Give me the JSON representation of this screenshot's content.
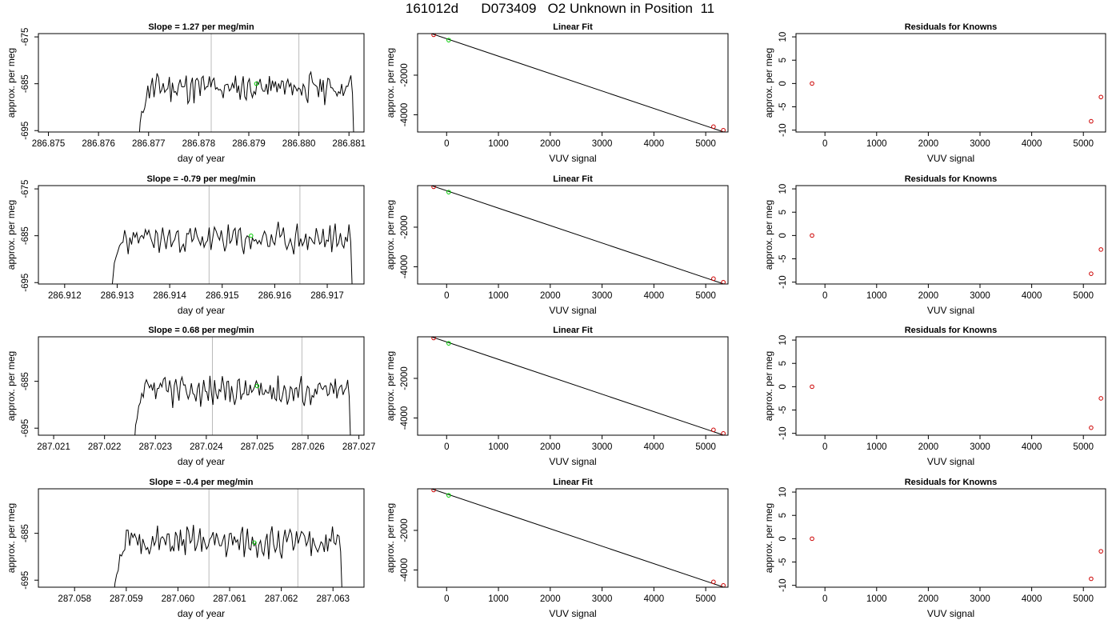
{
  "title": "161012d      D073409   O2 Unknown in Position  11",
  "chart_data": [
    {
      "row": 1,
      "time_panel": {
        "type": "line",
        "title": "Slope =  1.27  per meg/min",
        "xlabel": "day of year",
        "ylabel": "approx. per meg",
        "xlim": [
          286.8748,
          286.8813
        ],
        "ylim": [
          -695.3,
          -674.3
        ],
        "xticks": [
          "286.875",
          "286.876",
          "286.877",
          "286.878",
          "286.879",
          "286.880",
          "286.881"
        ],
        "yticks": [
          "-675",
          "-685",
          "-695"
        ],
        "series_x": [
          286.8768,
          286.8811
        ],
        "seed": 11,
        "vlines": [
          286.87825,
          286.88
        ],
        "marker": {
          "x": 286.87915,
          "y": -685
        }
      },
      "fit_panel": {
        "type": "scatter",
        "title": "Linear Fit",
        "xlabel": "VUV signal",
        "ylabel": "approx. per meg",
        "xlim": [
          -560,
          5430
        ],
        "ylim": [
          -4870,
          100
        ],
        "xticks": [
          "0",
          "1000",
          "2000",
          "3000",
          "4000",
          "5000"
        ],
        "yticks": [
          "-2000",
          "-4000"
        ],
        "line": [
          [
            -520,
            300
          ],
          [
            5350,
            -4870
          ]
        ],
        "knowns": [
          [
            -250,
            40
          ],
          [
            5150,
            -4600
          ],
          [
            5340,
            -4780
          ]
        ],
        "unknown": [
          [
            40,
            -230
          ]
        ]
      },
      "resid_panel": {
        "type": "scatter",
        "title": "Residuals for Knowns",
        "xlabel": "VUV signal",
        "ylabel": "approx. per meg",
        "xlim": [
          -560,
          5430
        ],
        "ylim": [
          -10.4,
          10.7
        ],
        "xticks": [
          "0",
          "1000",
          "2000",
          "3000",
          "4000",
          "5000"
        ],
        "yticks": [
          "10",
          "5",
          "0",
          "-5",
          "-10"
        ],
        "points": [
          [
            -250,
            0
          ],
          [
            5150,
            -8.1
          ],
          [
            5340,
            -2.9
          ]
        ]
      }
    },
    {
      "row": 2,
      "time_panel": {
        "type": "line",
        "title": "Slope =  -0.79  per meg/min",
        "xlabel": "day of year",
        "ylabel": "approx. per meg",
        "xlim": [
          286.9115,
          286.9177
        ],
        "ylim": [
          -695.3,
          -674.3
        ],
        "xticks": [
          "286.912",
          "286.913",
          "286.914",
          "286.915",
          "286.916",
          "286.917"
        ],
        "yticks": [
          "-675",
          "-685",
          "-695"
        ],
        "series_x": [
          286.91288,
          286.91748
        ],
        "seed": 23,
        "vlines": [
          286.91475,
          286.91648
        ],
        "marker": {
          "x": 286.91555,
          "y": -685
        }
      },
      "fit_panel": {
        "type": "scatter",
        "title": "Linear Fit",
        "xlabel": "VUV signal",
        "ylabel": "approx. per meg",
        "xlim": [
          -560,
          5430
        ],
        "ylim": [
          -4870,
          100
        ],
        "xticks": [
          "0",
          "1000",
          "2000",
          "3000",
          "4000",
          "5000"
        ],
        "yticks": [
          "-2000",
          "-4000"
        ],
        "line": [
          [
            -520,
            300
          ],
          [
            5350,
            -4870
          ]
        ],
        "knowns": [
          [
            -250,
            40
          ],
          [
            5150,
            -4600
          ],
          [
            5340,
            -4780
          ]
        ],
        "unknown": [
          [
            40,
            -230
          ]
        ]
      },
      "resid_panel": {
        "type": "scatter",
        "title": "Residuals for Knowns",
        "xlabel": "VUV signal",
        "ylabel": "approx. per meg",
        "xlim": [
          -560,
          5430
        ],
        "ylim": [
          -10.4,
          10.7
        ],
        "xticks": [
          "0",
          "1000",
          "2000",
          "3000",
          "4000",
          "5000"
        ],
        "yticks": [
          "10",
          "5",
          "0",
          "-5",
          "-10"
        ],
        "points": [
          [
            -250,
            0
          ],
          [
            5150,
            -8.2
          ],
          [
            5340,
            -3.0
          ]
        ]
      }
    },
    {
      "row": 3,
      "time_panel": {
        "type": "line",
        "title": "Slope =  0.68  per meg/min",
        "xlabel": "day of year",
        "ylabel": "approx. per meg",
        "xlim": [
          287.0207,
          287.0271
        ],
        "ylim": [
          -696.5,
          -675.5
        ],
        "xticks": [
          "287.021",
          "287.022",
          "287.023",
          "287.024",
          "287.025",
          "287.026",
          "287.027"
        ],
        "yticks": [
          "-685",
          "-695"
        ],
        "series_x": [
          287.02258,
          287.02684
        ],
        "seed": 37,
        "vlines": [
          287.02412,
          287.02588
        ],
        "marker": {
          "x": 287.025,
          "y": -686
        }
      },
      "fit_panel": {
        "type": "scatter",
        "title": "Linear Fit",
        "xlabel": "VUV signal",
        "ylabel": "approx. per meg",
        "xlim": [
          -560,
          5430
        ],
        "ylim": [
          -4870,
          100
        ],
        "xticks": [
          "0",
          "1000",
          "2000",
          "3000",
          "4000",
          "5000"
        ],
        "yticks": [
          "-2000",
          "-4000"
        ],
        "line": [
          [
            -520,
            300
          ],
          [
            5350,
            -4870
          ]
        ],
        "knowns": [
          [
            -250,
            40
          ],
          [
            5150,
            -4600
          ],
          [
            5340,
            -4780
          ]
        ],
        "unknown": [
          [
            40,
            -230
          ]
        ]
      },
      "resid_panel": {
        "type": "scatter",
        "title": "Residuals for Knowns",
        "xlabel": "VUV signal",
        "ylabel": "approx. per meg",
        "xlim": [
          -560,
          5430
        ],
        "ylim": [
          -10.4,
          10.7
        ],
        "xticks": [
          "0",
          "1000",
          "2000",
          "3000",
          "4000",
          "5000"
        ],
        "yticks": [
          "10",
          "5",
          "0",
          "-5",
          "-10"
        ],
        "points": [
          [
            -250,
            0
          ],
          [
            5150,
            -8.8
          ],
          [
            5340,
            -2.5
          ]
        ]
      }
    },
    {
      "row": 4,
      "time_panel": {
        "type": "line",
        "title": "Slope =  -0.4  per meg/min",
        "xlabel": "day of year",
        "ylabel": "approx. per meg",
        "xlim": [
          287.0573,
          287.0636
        ],
        "ylim": [
          -696.5,
          -675.5
        ],
        "xticks": [
          "287.058",
          "287.059",
          "287.060",
          "287.061",
          "287.062",
          "287.063"
        ],
        "yticks": [
          "-685",
          "-695"
        ],
        "series_x": [
          287.05875,
          287.06318
        ],
        "seed": 51,
        "vlines": [
          287.0606,
          287.06232
        ],
        "marker": {
          "x": 287.06148,
          "y": -687
        }
      },
      "fit_panel": {
        "type": "scatter",
        "title": "Linear Fit",
        "xlabel": "VUV signal",
        "ylabel": "approx. per meg",
        "xlim": [
          -560,
          5430
        ],
        "ylim": [
          -4870,
          100
        ],
        "xticks": [
          "0",
          "1000",
          "2000",
          "3000",
          "4000",
          "5000"
        ],
        "yticks": [
          "-2000",
          "-4000"
        ],
        "line": [
          [
            -520,
            300
          ],
          [
            5350,
            -4870
          ]
        ],
        "knowns": [
          [
            -250,
            40
          ],
          [
            5150,
            -4600
          ],
          [
            5340,
            -4780
          ]
        ],
        "unknown": [
          [
            40,
            -230
          ]
        ]
      },
      "resid_panel": {
        "type": "scatter",
        "title": "Residuals for Knowns",
        "xlabel": "VUV signal",
        "ylabel": "approx. per meg",
        "xlim": [
          -560,
          5430
        ],
        "ylim": [
          -10.4,
          10.7
        ],
        "xticks": [
          "0",
          "1000",
          "2000",
          "3000",
          "4000",
          "5000"
        ],
        "yticks": [
          "10",
          "5",
          "0",
          "-5",
          "-10"
        ],
        "points": [
          [
            -250,
            0
          ],
          [
            5150,
            -8.6
          ],
          [
            5340,
            -2.7
          ]
        ]
      }
    }
  ],
  "colors": {
    "known_point": "#cc0000",
    "unknown_point": "#00cc00",
    "vline": "#bbbbbb",
    "line": "#000000"
  }
}
